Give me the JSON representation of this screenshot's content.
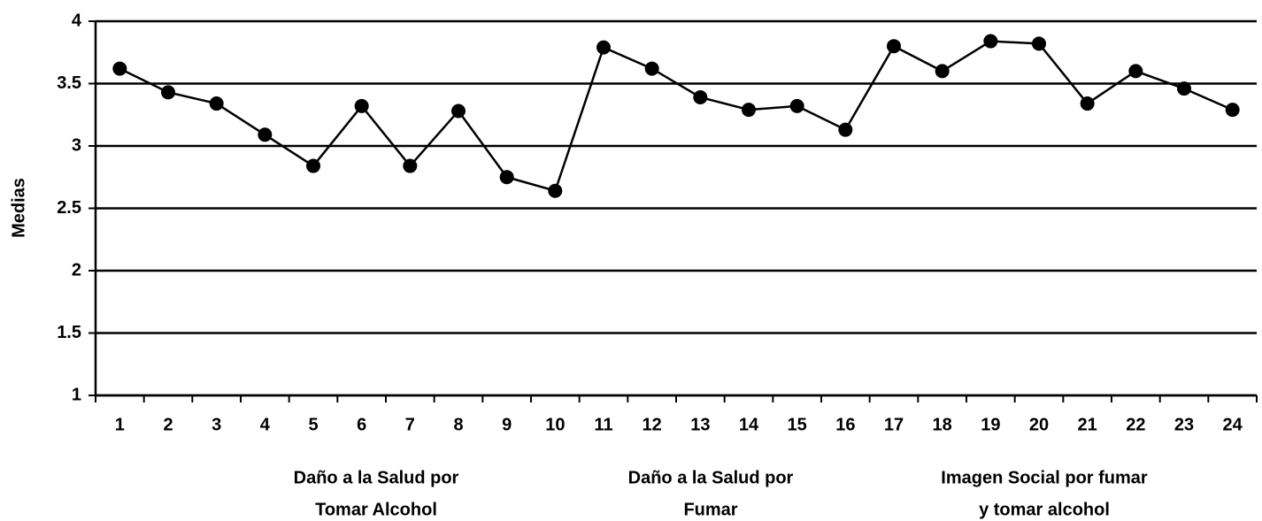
{
  "chart_data": {
    "type": "line",
    "y_label": "Medias",
    "categories": [
      "1",
      "2",
      "3",
      "4",
      "5",
      "6",
      "7",
      "8",
      "9",
      "10",
      "11",
      "12",
      "13",
      "14",
      "15",
      "16",
      "17",
      "18",
      "19",
      "20",
      "21",
      "22",
      "23",
      "24"
    ],
    "series": [
      {
        "name": "Medias",
        "color": "#000000",
        "values": [
          3.62,
          3.43,
          3.34,
          3.09,
          2.84,
          3.32,
          2.84,
          3.28,
          2.75,
          2.64,
          3.79,
          3.62,
          3.39,
          3.29,
          3.32,
          3.13,
          3.8,
          3.6,
          3.84,
          3.82,
          3.34,
          3.6,
          3.46,
          3.29
        ]
      }
    ],
    "ylim": [
      1,
      4
    ],
    "yticks": [
      1,
      1.5,
      2,
      2.5,
      3,
      3.5,
      4
    ],
    "grid": true,
    "groups": [
      {
        "lines": [
          "Daño a la Salud por",
          "Tomar Alcohol"
        ]
      },
      {
        "lines": [
          "Daño a la Salud por",
          "Fumar"
        ]
      },
      {
        "lines": [
          "Imagen Social por fumar",
          "y tomar alcohol"
        ]
      }
    ]
  }
}
